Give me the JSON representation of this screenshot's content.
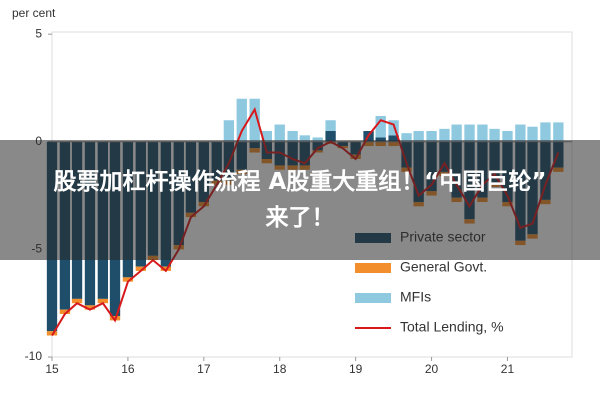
{
  "chart_data": {
    "type": "stacked-bar-line",
    "y_label": "per cent",
    "x": [
      15,
      15.17,
      15.33,
      15.5,
      15.67,
      15.83,
      16,
      16.17,
      16.33,
      16.5,
      16.67,
      16.83,
      17,
      17.17,
      17.33,
      17.5,
      17.67,
      17.83,
      18,
      18.17,
      18.33,
      18.5,
      18.67,
      18.83,
      19,
      19.17,
      19.33,
      19.5,
      19.67,
      19.83,
      20,
      20.17,
      20.33,
      20.5,
      20.67,
      20.83,
      21,
      21.17,
      21.33,
      21.5,
      21.67
    ],
    "xlim": [
      15,
      21.85
    ],
    "xticks": [
      15,
      16,
      17,
      18,
      19,
      20,
      21
    ],
    "ylim": [
      -10,
      5.1
    ],
    "yticks": [
      5,
      0,
      -5,
      -10
    ],
    "series": [
      {
        "name": "Private sector",
        "color": "#1f4e6b",
        "kind": "bar",
        "values": [
          -8.8,
          -7.8,
          -7.3,
          -7.6,
          -7.3,
          -8.1,
          -6.3,
          -5.8,
          -5.3,
          -5.8,
          -4.8,
          -3.3,
          -2.8,
          -1.8,
          -1.8,
          -1.3,
          -0.3,
          -0.8,
          -1.1,
          -1.1,
          -1.1,
          -0.4,
          0.5,
          -0.2,
          -0.6,
          0.5,
          0.2,
          0.3,
          -1.2,
          -2.8,
          -2.3,
          -1.4,
          -2.6,
          -3.6,
          -2.6,
          -1.9,
          -2.8,
          -4.6,
          -4.3,
          -2.7,
          -1.2
        ]
      },
      {
        "name": "General Govt.",
        "color": "#f28e2b",
        "kind": "bar",
        "values": [
          -0.2,
          -0.2,
          -0.2,
          -0.2,
          -0.2,
          -0.2,
          -0.2,
          -0.2,
          -0.2,
          -0.2,
          -0.2,
          -0.2,
          -0.2,
          -0.2,
          -0.2,
          -0.2,
          -0.2,
          -0.2,
          -0.2,
          -0.2,
          -0.2,
          -0.1,
          -0.1,
          -0.1,
          -0.2,
          -0.2,
          -0.2,
          -0.2,
          -0.2,
          -0.2,
          -0.2,
          -0.2,
          -0.2,
          -0.2,
          -0.2,
          -0.2,
          -0.2,
          -0.2,
          -0.2,
          -0.2,
          -0.2
        ]
      },
      {
        "name": "MFIs",
        "color": "#8ec9e0",
        "kind": "bar",
        "values": [
          0,
          0,
          0,
          0,
          0,
          0,
          0,
          0,
          0,
          0,
          0,
          0,
          0,
          0,
          1,
          2,
          2,
          0.5,
          0.8,
          0.5,
          0.3,
          0.2,
          0.5,
          0,
          0,
          0,
          1,
          0.7,
          0.4,
          0.5,
          0.5,
          0.6,
          0.8,
          0.8,
          0.8,
          0.6,
          0.5,
          0.8,
          0.7,
          0.9,
          0.9
        ]
      },
      {
        "name": "Total Lending, %",
        "color": "#d7191c",
        "kind": "line",
        "values": [
          -9,
          -8,
          -7.5,
          -7.8,
          -7.5,
          -8.3,
          -6.5,
          -6,
          -5.5,
          -6,
          -5,
          -3.5,
          -3,
          -2,
          -1,
          0.5,
          1.5,
          -0.5,
          -0.5,
          -0.8,
          -1,
          -0.3,
          0,
          -0.3,
          -0.8,
          0.3,
          1,
          0.8,
          -1,
          -2.5,
          -2,
          -1,
          -2,
          -3,
          -2,
          -1.5,
          -2.5,
          -4,
          -3.8,
          -2,
          -0.5
        ]
      }
    ]
  },
  "banner": {
    "lines": [
      "股票加杠杆操作流程 A股重大重组！“中国巨轮”",
      "来了！"
    ]
  }
}
